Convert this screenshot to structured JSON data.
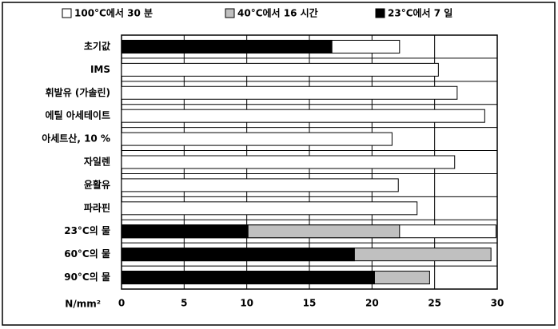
{
  "chart_data": {
    "type": "overlaid-bar",
    "orientation": "horizontal",
    "categories": [
      "초기값",
      "IMS",
      "휘발유 (가솔린)",
      "에틸 아세테이트",
      "아세트산, 10 %",
      "자일렌",
      "윤활유",
      "파라핀",
      "23°C의 물",
      "60°C의 물",
      "90°C의 물"
    ],
    "series": [
      {
        "name": "100°C에서 30 분",
        "color": "#ffffff",
        "values": [
          22.2,
          25.3,
          26.8,
          29.0,
          21.6,
          26.6,
          22.1,
          23.6,
          29.9,
          null,
          null
        ]
      },
      {
        "name": "40°C에서 16 시간",
        "color": "#c0c0c0",
        "values": [
          null,
          null,
          null,
          null,
          null,
          null,
          null,
          null,
          22.2,
          29.5,
          24.6
        ]
      },
      {
        "name": "23°C에서 7 일",
        "color": "#000000",
        "values": [
          16.8,
          null,
          null,
          null,
          null,
          null,
          null,
          null,
          10.1,
          18.6,
          20.2
        ]
      }
    ],
    "x_label": "N/mm²",
    "xlim": [
      0,
      30
    ],
    "xticks": [
      0,
      5,
      10,
      15,
      20,
      25,
      30
    ],
    "grid": true
  }
}
